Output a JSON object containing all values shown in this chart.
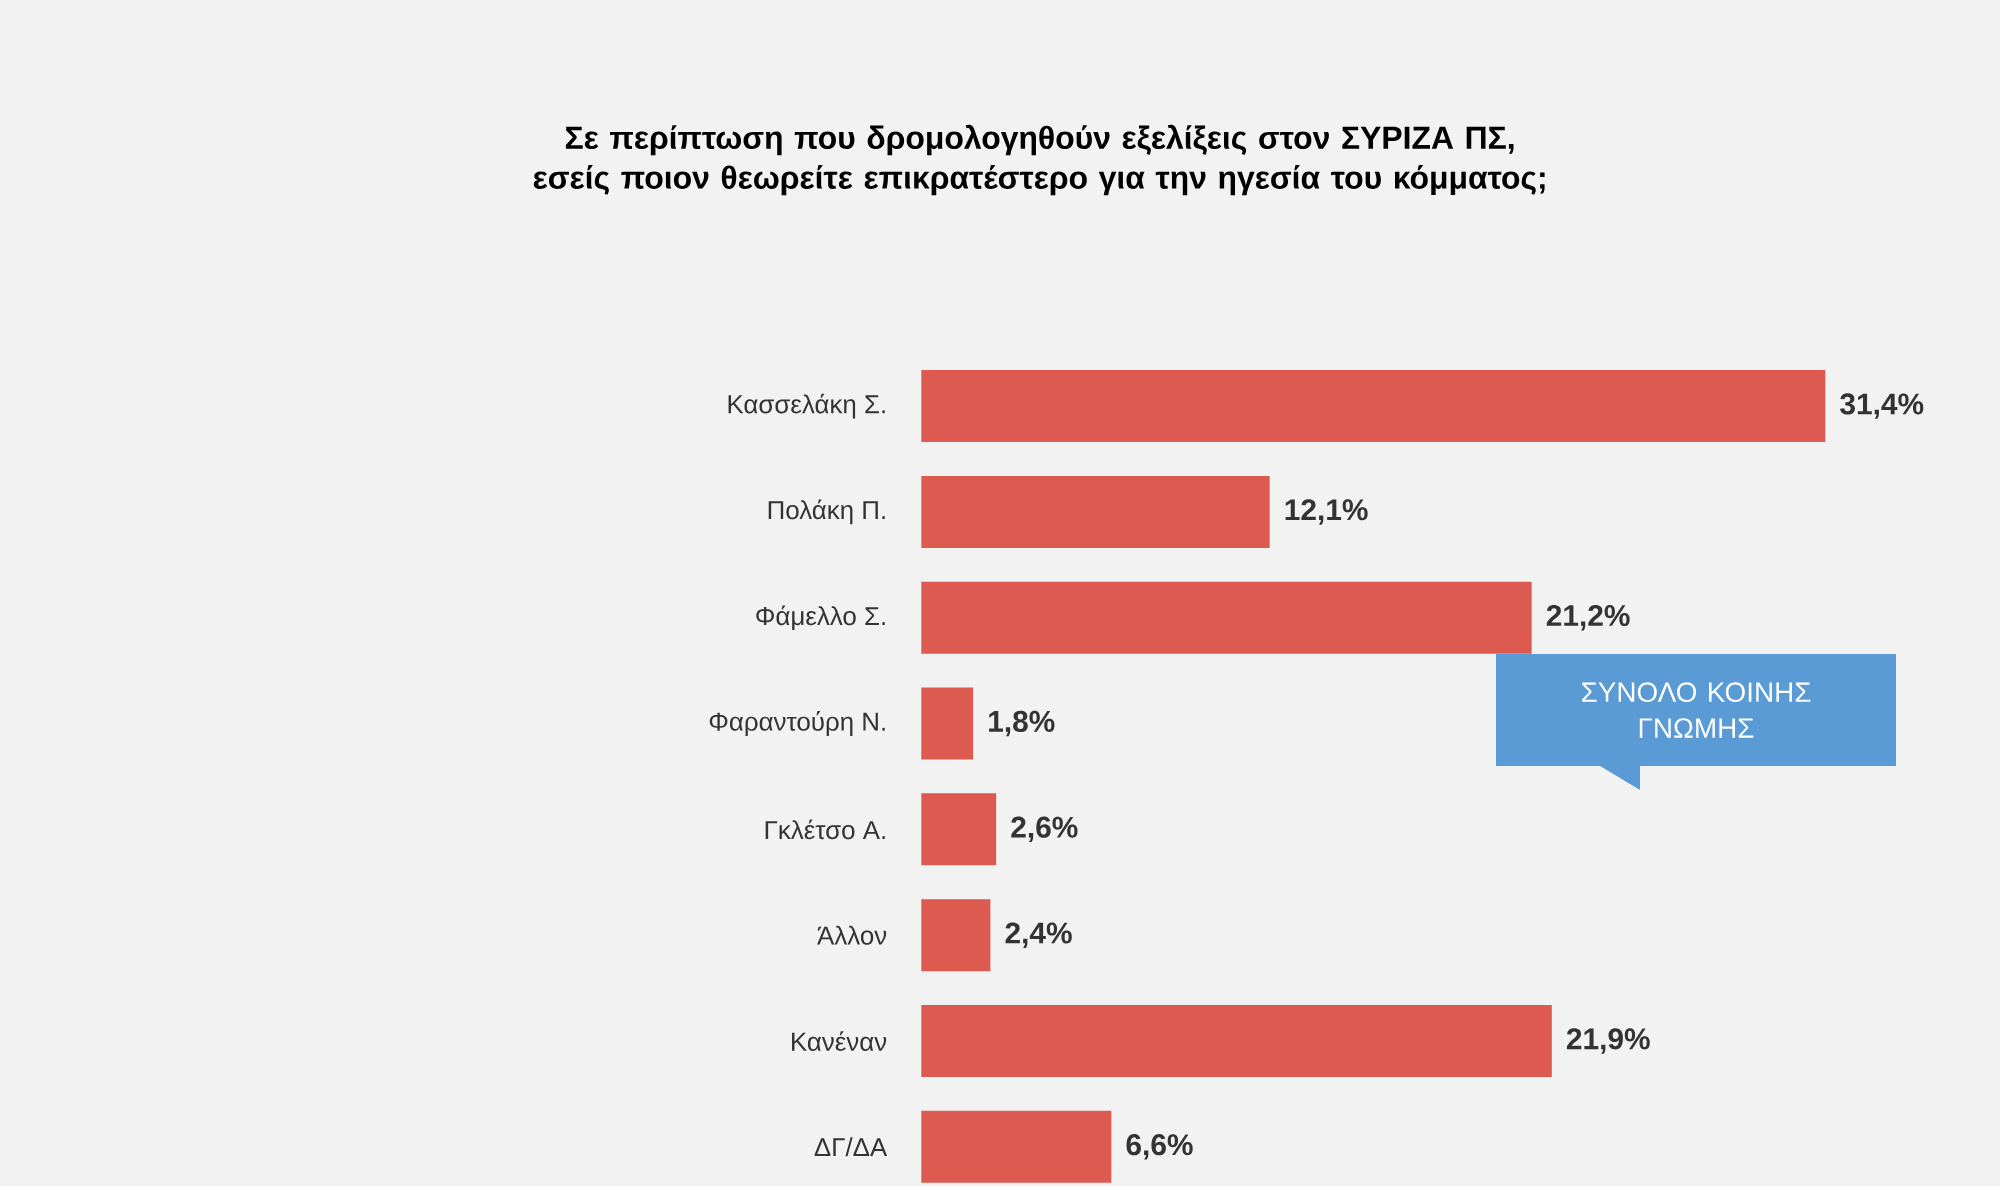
{
  "chart_data": {
    "type": "bar",
    "orientation": "horizontal",
    "title": "Σε περίπτωση που δρομολογηθούν εξελίξεις στον ΣΥΡΙΖΑ ΠΣ, εσείς ποιον θεωρείτε επικρατέστερο για την ηγεσία του κόμματος;",
    "categories": [
      "Κασσελάκη Σ.",
      "Πολάκη Π.",
      "Φάμελλο Σ.",
      "Φαραντούρη Ν.",
      "Γκλέτσο Α.",
      "Άλλον",
      "Κανέναν",
      "ΔΓ/ΔΑ"
    ],
    "values": [
      31.4,
      12.1,
      21.2,
      1.8,
      2.6,
      2.4,
      21.9,
      6.6
    ],
    "value_labels": [
      "31,4%",
      "12,1%",
      "21,2%",
      "1,8%",
      "2,6%",
      "2,4%",
      "21,9%",
      "6,6%"
    ],
    "color": "#dc5a50",
    "annotations": [
      "ΣΥΝΟΛΟ ΚΟΙΝΗΣ ΓΝΩΜΗΣ"
    ]
  }
}
